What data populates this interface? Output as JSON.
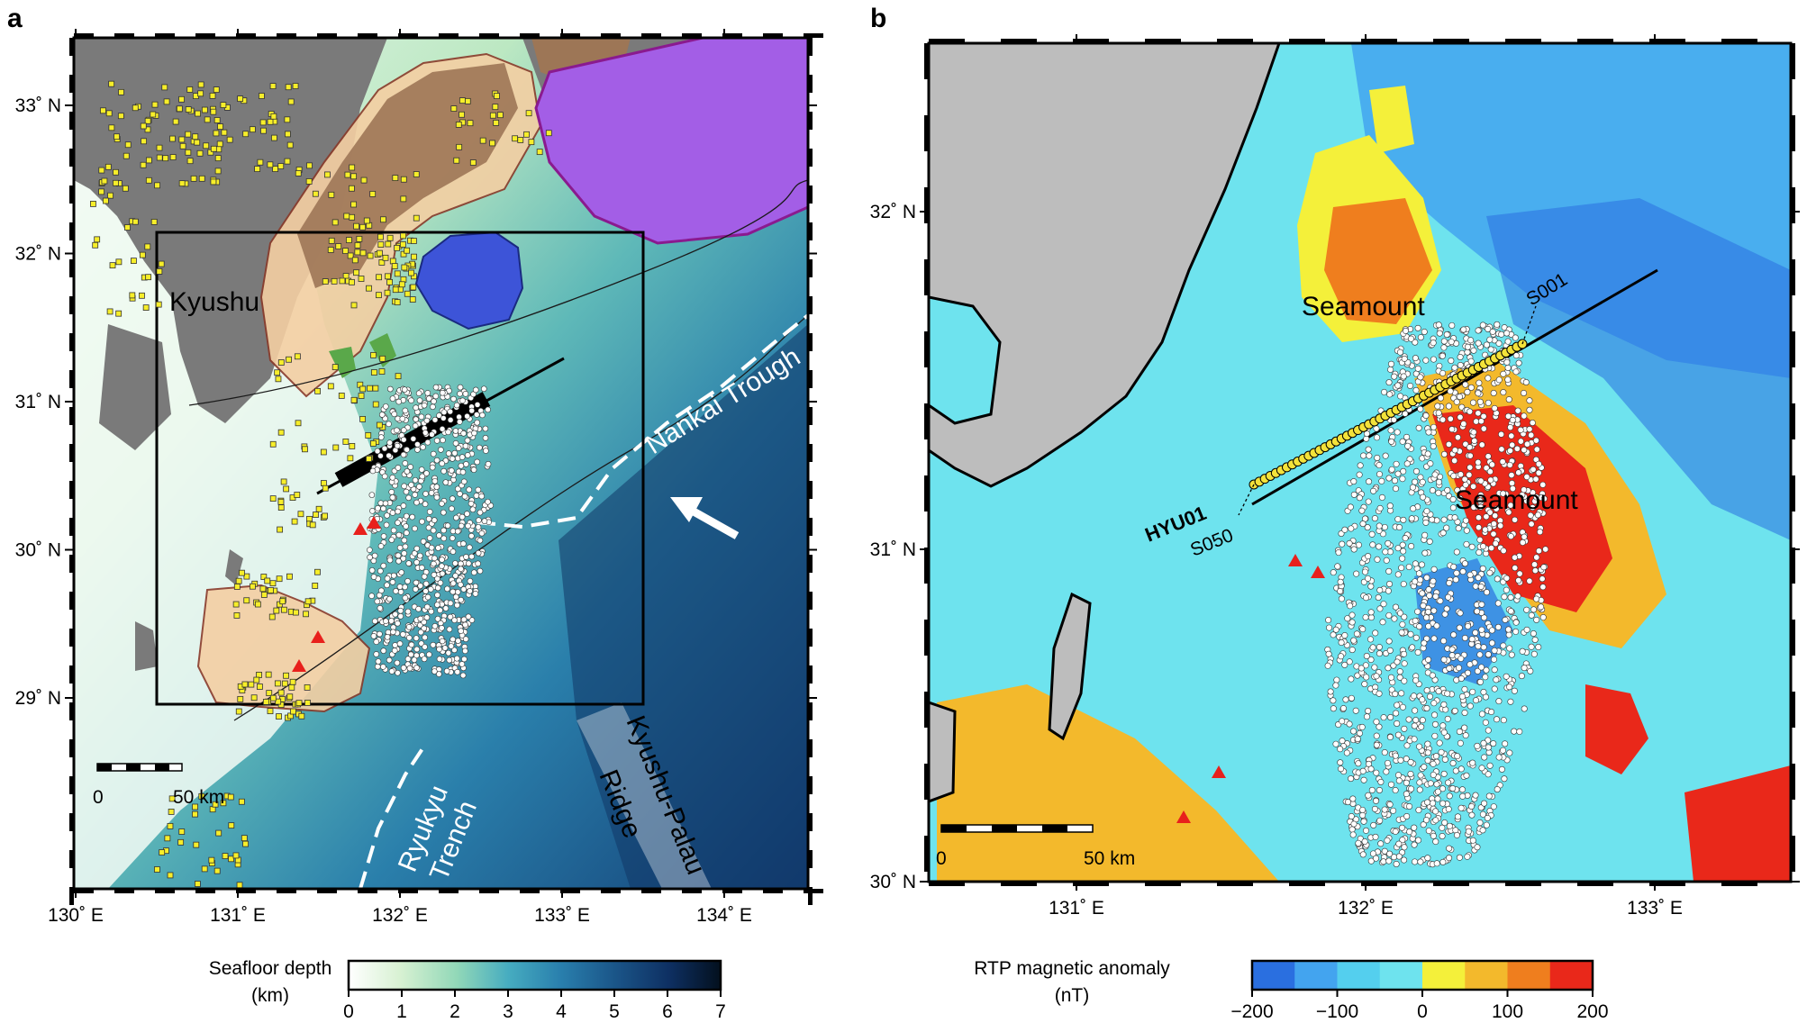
{
  "panel_a": {
    "letter": "a",
    "lat_labels": [
      "33˚ N",
      "32˚ N",
      "31˚ N",
      "30˚ N",
      "29˚ N"
    ],
    "lon_labels": [
      "130˚ E",
      "131˚ E",
      "132˚ E",
      "133˚ E",
      "134˚ E"
    ],
    "place_labels": {
      "kyushu": "Kyushu",
      "nankai": "Nankai Trough",
      "ryukyu_1": "Ryukyu",
      "ryukyu_2": "Trench",
      "kpr_1": "Kyushu-Palau",
      "kpr_2": "Ridge"
    },
    "scale": {
      "zero": "0",
      "dist": "50 km"
    },
    "colorbar": {
      "title_1": "Seafloor depth",
      "title_2": "(km)",
      "ticks": [
        "0",
        "1",
        "2",
        "3",
        "4",
        "5",
        "6",
        "7"
      ],
      "colors": [
        "#ffffff",
        "#d6f0cf",
        "#8fd6b7",
        "#49aec0",
        "#2a80ad",
        "#1c5a8c",
        "#0f3366",
        "#04101f"
      ]
    },
    "region_colors": {
      "land": "#7a7a7a",
      "tan": "#f4cfa3",
      "brown": "#9d7656",
      "purple": "#a35ee6",
      "blue_region": "#3d54d8",
      "green_region": "#5aa84a",
      "quake_fill": "#f7ee2a",
      "tremor_fill": "#ffffff",
      "volcano": "#e8201c",
      "convergence_arrow": "#ffffff"
    }
  },
  "panel_b": {
    "letter": "b",
    "lat_labels": [
      "32˚ N",
      "31˚ N",
      "30˚ N"
    ],
    "lon_labels": [
      "131˚ E",
      "132˚ E",
      "133˚ E"
    ],
    "place_labels": {
      "seamount_1": "Seamount",
      "seamount_2": "Seamount",
      "hyu01": "HYU01",
      "s050": "S050",
      "s001": "S001"
    },
    "scale": {
      "zero": "0",
      "dist": "50 km"
    },
    "colorbar": {
      "title_1": "RTP magnetic anomaly",
      "title_2": "(nT)",
      "ticks": [
        "−200",
        "−100",
        "0",
        "100",
        "200"
      ],
      "colors": [
        "#2a6fe0",
        "#43a4ef",
        "#54cfee",
        "#6ee3ee",
        "#f4f03a",
        "#f3b92c",
        "#ef7e1e",
        "#e9281a"
      ]
    }
  }
}
